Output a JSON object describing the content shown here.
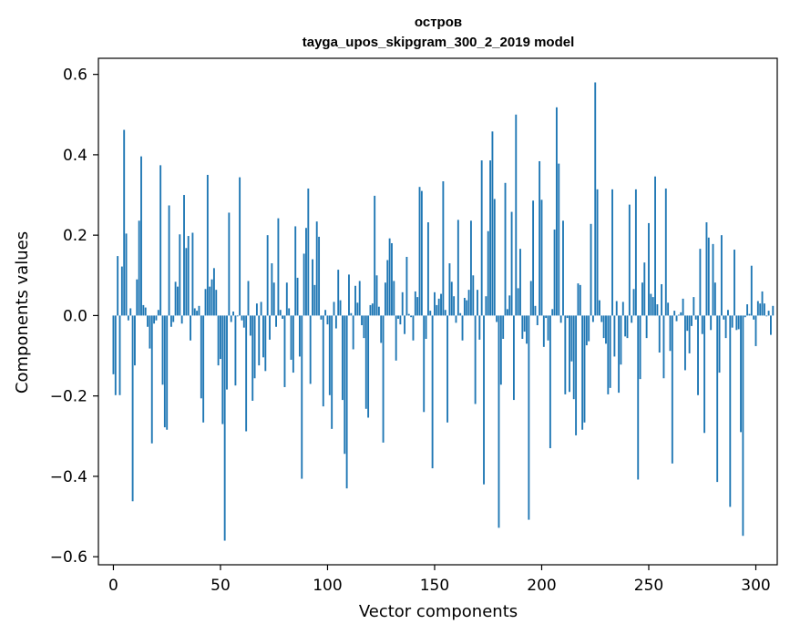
{
  "chart_data": {
    "type": "bar",
    "title": "остров",
    "subtitle": "tayga_upos_skipgram_300_2_2019 model",
    "xlabel": "Vector components",
    "ylabel": "Components values",
    "xlim": [
      -7,
      310
    ],
    "ylim": [
      -0.62,
      0.64
    ],
    "xticks": [
      0,
      50,
      100,
      150,
      200,
      250,
      300
    ],
    "xtick_labels": [
      "0",
      "50",
      "100",
      "150",
      "200",
      "250",
      "300"
    ],
    "yticks": [
      -0.6,
      -0.4,
      -0.2,
      0.0,
      0.2,
      0.4,
      0.6
    ],
    "ytick_labels": [
      "−0.6",
      "−0.4",
      "−0.2",
      "0.0",
      "0.2",
      "0.4",
      "0.6"
    ],
    "bar_color": "#1f77b4",
    "grid": false,
    "values": [
      -0.146,
      -0.198,
      0.148,
      -0.198,
      0.122,
      0.462,
      0.204,
      -0.012,
      0.018,
      -0.462,
      -0.124,
      0.09,
      0.236,
      0.396,
      0.026,
      0.02,
      -0.028,
      -0.082,
      -0.318,
      -0.02,
      -0.012,
      0.014,
      0.374,
      -0.172,
      -0.278,
      -0.284,
      0.274,
      -0.028,
      -0.016,
      0.084,
      0.072,
      0.202,
      -0.02,
      0.3,
      0.168,
      0.198,
      -0.062,
      0.206,
      0.018,
      0.012,
      0.024,
      -0.206,
      -0.266,
      0.066,
      0.35,
      0.072,
      0.09,
      0.118,
      0.064,
      -0.124,
      -0.108,
      -0.27,
      -0.56,
      -0.184,
      0.256,
      -0.016,
      0.01,
      -0.174,
      -0.002,
      0.344,
      -0.012,
      -0.03,
      -0.288,
      0.086,
      -0.05,
      -0.212,
      -0.156,
      0.03,
      -0.124,
      0.034,
      -0.104,
      -0.138,
      0.2,
      -0.06,
      0.13,
      0.082,
      -0.028,
      0.242,
      0.014,
      -0.008,
      -0.178,
      0.082,
      0.018,
      -0.11,
      -0.142,
      0.222,
      0.094,
      -0.102,
      -0.406,
      0.154,
      0.218,
      0.316,
      -0.17,
      0.14,
      0.076,
      0.234,
      0.196,
      -0.01,
      -0.226,
      0.014,
      -0.022,
      -0.198,
      -0.282,
      0.034,
      -0.032,
      0.114,
      0.038,
      -0.21,
      -0.344,
      -0.43,
      0.102,
      0.006,
      -0.084,
      0.074,
      0.032,
      0.086,
      -0.024,
      -0.056,
      -0.232,
      -0.254,
      0.026,
      0.03,
      0.298,
      0.1,
      0.022,
      -0.068,
      -0.316,
      0.082,
      0.138,
      0.192,
      0.18,
      0.086,
      -0.112,
      -0.008,
      -0.022,
      0.058,
      -0.046,
      0.146,
      0.004,
      -0.004,
      -0.062,
      0.06,
      0.046,
      0.32,
      0.31,
      -0.24,
      -0.058,
      0.232,
      0.012,
      -0.38,
      0.058,
      0.026,
      0.042,
      0.054,
      0.334,
      0.014,
      -0.266,
      0.13,
      0.084,
      0.048,
      -0.018,
      0.238,
      0.006,
      -0.062,
      0.044,
      0.038,
      0.064,
      0.236,
      0.1,
      -0.22,
      0.064,
      -0.06,
      0.386,
      -0.42,
      0.048,
      0.21,
      0.386,
      0.458,
      0.29,
      -0.016,
      -0.528,
      -0.172,
      -0.058,
      0.33,
      0.016,
      0.05,
      0.258,
      -0.21,
      0.5,
      0.068,
      0.166,
      -0.058,
      -0.04,
      -0.07,
      -0.508,
      0.086,
      0.286,
      0.024,
      -0.024,
      0.384,
      0.288,
      -0.078,
      -0.006,
      -0.062,
      -0.33,
      0.016,
      0.214,
      0.518,
      0.378,
      -0.018,
      0.236,
      -0.196,
      -0.006,
      -0.19,
      -0.114,
      -0.208,
      -0.298,
      0.08,
      0.076,
      -0.284,
      -0.266,
      -0.074,
      -0.064,
      0.228,
      -0.016,
      0.58,
      0.314,
      0.038,
      -0.016,
      -0.056,
      -0.07,
      -0.196,
      -0.18,
      0.314,
      -0.102,
      0.036,
      -0.192,
      -0.122,
      0.034,
      -0.052,
      -0.056,
      0.276,
      -0.018,
      0.066,
      0.314,
      -0.408,
      -0.158,
      0.082,
      0.132,
      -0.056,
      0.23,
      0.054,
      0.046,
      0.346,
      0.028,
      -0.092,
      0.078,
      -0.156,
      0.316,
      0.032,
      -0.088,
      -0.368,
      0.012,
      -0.014,
      0.002,
      0.008,
      0.042,
      -0.136,
      -0.038,
      -0.094,
      -0.026,
      0.046,
      -0.01,
      -0.198,
      0.166,
      -0.046,
      -0.292,
      0.232,
      0.194,
      -0.036,
      0.178,
      0.082,
      -0.414,
      -0.142,
      0.2,
      -0.01,
      -0.056,
      0.014,
      -0.476,
      -0.03,
      0.164,
      -0.036,
      -0.034,
      -0.29,
      -0.548,
      -0.004,
      0.028,
      0.004,
      0.124,
      -0.01,
      -0.076,
      0.036,
      0.03,
      0.06,
      0.03,
      -0.002,
      0.012,
      -0.048,
      0.024
    ]
  }
}
